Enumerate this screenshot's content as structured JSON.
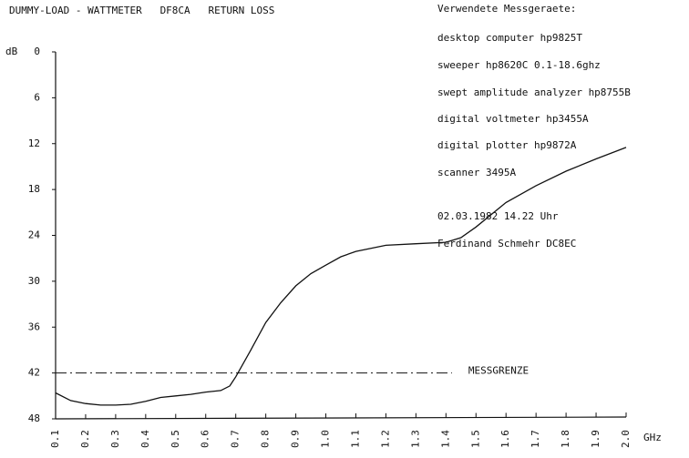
{
  "chart_data": {
    "type": "line",
    "title": "DUMMY-LOAD - WATTMETER   DF8CA   RETURN LOSS",
    "y_label": "dB",
    "x_label": "GHz",
    "annotations": [
      "Verwendete Messgeraete:",
      "desktop computer  hp9825T",
      "sweeper  hp8620C 0.1-18.6ghz",
      "swept amplitude analyzer hp8755B",
      "digital voltmeter  hp3455A",
      "digital plotter hp9872A",
      "scanner  3495A",
      "02.03.1982  14.22 Uhr",
      "Ferdinand Schmehr DC8EC"
    ],
    "x": [
      0.1,
      0.15,
      0.2,
      0.25,
      0.3,
      0.35,
      0.4,
      0.45,
      0.5,
      0.55,
      0.6,
      0.65,
      0.68,
      0.7,
      0.75,
      0.8,
      0.85,
      0.9,
      0.95,
      1.0,
      1.05,
      1.1,
      1.2,
      1.3,
      1.4,
      1.45,
      1.5,
      1.6,
      1.7,
      1.8,
      1.9,
      2.0
    ],
    "series": [
      {
        "name": "RETURN LOSS",
        "color": "#111111",
        "values": [
          44.6,
          45.6,
          46.0,
          46.2,
          46.2,
          46.1,
          45.7,
          45.2,
          45.0,
          44.8,
          44.5,
          44.3,
          43.7,
          42.5,
          39,
          35.4,
          32.8,
          30.6,
          29,
          27.9,
          26.8,
          26.1,
          25.3,
          25.1,
          24.9,
          24.3,
          22.9,
          19.7,
          17.5,
          15.6,
          14.0,
          12.5
        ]
      }
    ],
    "limit": {
      "label": "MESSGRENZE",
      "value": 42,
      "x": [
        0.1,
        1.42
      ]
    },
    "xlim": [
      0.1,
      2.0
    ],
    "xticks": [
      0.1,
      0.2,
      0.3,
      0.4,
      0.5,
      0.6,
      0.7,
      0.8,
      0.9,
      {
        "value": 1,
        "label": "1.0"
      },
      1.1,
      1.2,
      1.3,
      1.4,
      1.5,
      1.6,
      1.7,
      1.8,
      1.9,
      {
        "value": 2,
        "label": "2.0"
      }
    ],
    "ylim": [
      48,
      0
    ],
    "yticks": [
      0,
      6,
      12,
      18,
      24,
      30,
      36,
      42,
      48
    ]
  }
}
